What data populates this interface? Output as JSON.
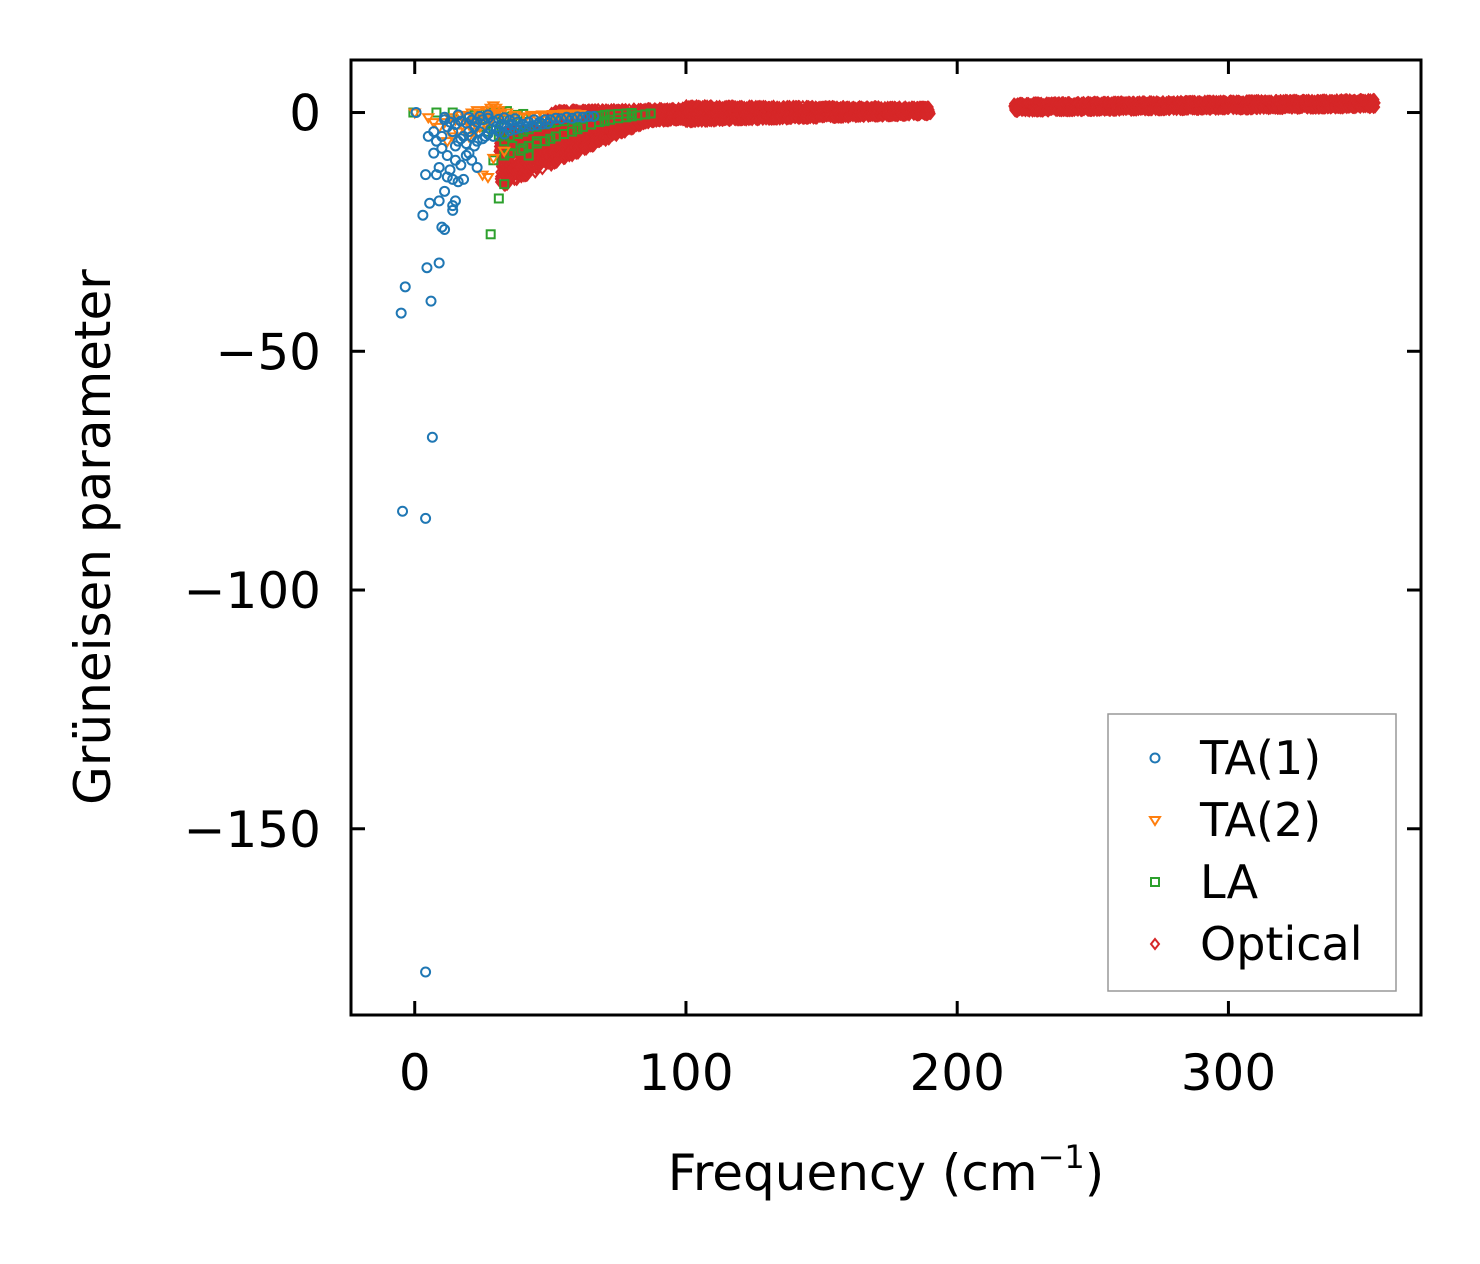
{
  "chart_data": {
    "type": "scatter",
    "xlabel": "Frequency (cm",
    "xlabel_sup": "−1",
    "xlabel_close": ")",
    "ylabel": "Grüneisen parameter",
    "xlim": [
      -23.5,
      371
    ],
    "ylim": [
      -189,
      11
    ],
    "xticks": [
      0,
      100,
      200,
      300
    ],
    "xtick_labels": [
      "0",
      "100",
      "200",
      "300"
    ],
    "yticks": [
      0,
      -50,
      -100,
      -150
    ],
    "ytick_labels": [
      "0",
      "−50",
      "−100",
      "−150"
    ],
    "legend_position": "lower-right",
    "colors": {
      "ta1": "#1f77b4",
      "ta2": "#ff7f0e",
      "la": "#2ca02c",
      "optical": "#d62728",
      "axes": "#000000",
      "legend_border": "#999999"
    },
    "series": [
      {
        "name": "TA(1)",
        "marker": "circle",
        "color_key": "ta1",
        "points": [
          [
            -5,
            -42
          ],
          [
            -3.5,
            -36.5
          ],
          [
            -4.5,
            -83.5
          ],
          [
            4,
            -85
          ],
          [
            6.5,
            -68
          ],
          [
            4,
            -180
          ],
          [
            6,
            -39.5
          ],
          [
            4.5,
            -32.5
          ],
          [
            9,
            -31.5
          ],
          [
            3,
            -21.5
          ],
          [
            5.5,
            -19
          ],
          [
            9,
            -18.5
          ],
          [
            14,
            -19.5
          ],
          [
            15,
            -18.5
          ],
          [
            10,
            -24
          ],
          [
            11,
            -24.5
          ],
          [
            4,
            -13
          ],
          [
            8,
            -13
          ],
          [
            9,
            -11.5
          ],
          [
            12,
            -13.5
          ],
          [
            14,
            -14
          ],
          [
            16,
            -14.5
          ],
          [
            18,
            -14
          ],
          [
            11,
            -16.5
          ],
          [
            14,
            -20.5
          ],
          [
            13,
            -12
          ],
          [
            7,
            -8.5
          ],
          [
            10,
            -7.5
          ],
          [
            12,
            -9
          ],
          [
            15,
            -10
          ],
          [
            17,
            -11
          ],
          [
            19,
            -9
          ],
          [
            21,
            -10
          ],
          [
            23,
            -11.5
          ],
          [
            20,
            -8.5
          ],
          [
            22,
            -7
          ],
          [
            5,
            -5
          ],
          [
            7,
            -4
          ],
          [
            8,
            -6
          ],
          [
            10,
            -5
          ],
          [
            12,
            -3
          ],
          [
            14,
            -4
          ],
          [
            16,
            -6
          ],
          [
            18,
            -5
          ],
          [
            20,
            -4
          ],
          [
            22,
            -3
          ],
          [
            24,
            -4
          ],
          [
            26,
            -5
          ],
          [
            28,
            -3.5
          ],
          [
            30,
            -3
          ],
          [
            32,
            -2.5
          ],
          [
            34,
            -3
          ],
          [
            36,
            -2.5
          ],
          [
            38,
            -2
          ],
          [
            40,
            -2.5
          ],
          [
            42,
            -2
          ],
          [
            44,
            -1.5
          ],
          [
            46,
            -2
          ],
          [
            48,
            -1.5
          ],
          [
            50,
            -1.5
          ],
          [
            52,
            -1.2
          ],
          [
            54,
            -1.3
          ],
          [
            56,
            -1
          ],
          [
            58,
            -1.2
          ],
          [
            60,
            -0.9
          ],
          [
            62,
            -1
          ],
          [
            64,
            -0.8
          ],
          [
            66,
            -0.8
          ],
          [
            11,
            -1.5
          ],
          [
            13,
            -2
          ],
          [
            15,
            -2.5
          ],
          [
            17,
            -1.8
          ],
          [
            19,
            -2.2
          ],
          [
            21,
            -1.6
          ],
          [
            23,
            -2
          ],
          [
            25,
            -1.5
          ],
          [
            27,
            -1.2
          ],
          [
            29,
            -1.8
          ],
          [
            31,
            -1.4
          ],
          [
            33,
            -1.1
          ],
          [
            35,
            -1.6
          ],
          [
            37,
            -1.3
          ],
          [
            15,
            -7
          ],
          [
            17,
            -5.5
          ],
          [
            19,
            -6.5
          ],
          [
            21,
            -5
          ],
          [
            23,
            -6
          ],
          [
            25,
            -5.5
          ],
          [
            27,
            -4.5
          ],
          [
            29,
            -5
          ],
          [
            31,
            -4
          ],
          [
            33,
            -4.5
          ],
          [
            35,
            -3.8
          ],
          [
            37,
            -3.5
          ],
          [
            39,
            -3.2
          ],
          [
            41,
            -3
          ],
          [
            43,
            -2.8
          ],
          [
            45,
            -2.6
          ],
          [
            47,
            -2.4
          ],
          [
            49,
            -2.3
          ],
          [
            0.5,
            0
          ],
          [
            11,
            -1
          ],
          [
            16,
            -0.5
          ],
          [
            20,
            -1
          ],
          [
            24,
            -0.8
          ],
          [
            27,
            -0.5
          ]
        ]
      },
      {
        "name": "TA(2)",
        "marker": "triangle-down",
        "color_key": "ta2",
        "points": [
          [
            0,
            0
          ],
          [
            5,
            -1
          ],
          [
            7,
            -2
          ],
          [
            9,
            -3
          ],
          [
            11,
            -2
          ],
          [
            13,
            -1
          ],
          [
            15,
            -1.5
          ],
          [
            17,
            -0.5
          ],
          [
            19,
            -1
          ],
          [
            21,
            0
          ],
          [
            23,
            0.5
          ],
          [
            25,
            0
          ],
          [
            27,
            0.5
          ],
          [
            28,
            1
          ],
          [
            29,
            1.5
          ],
          [
            30,
            1
          ],
          [
            31,
            0.5
          ],
          [
            32,
            0
          ],
          [
            25,
            -13
          ],
          [
            27,
            -13.5
          ],
          [
            29,
            -9.5
          ],
          [
            33,
            -8
          ],
          [
            35,
            -1
          ],
          [
            37,
            -0.5
          ],
          [
            39,
            -1
          ],
          [
            41,
            -0.8
          ],
          [
            43,
            -0.5
          ],
          [
            45,
            -0.7
          ],
          [
            47,
            -0.4
          ],
          [
            49,
            -0.6
          ],
          [
            51,
            -0.3
          ],
          [
            53,
            -0.5
          ],
          [
            55,
            -0.2
          ],
          [
            57,
            -0.4
          ],
          [
            59,
            -0.2
          ],
          [
            61,
            -0.3
          ],
          [
            12,
            -6
          ],
          [
            14,
            -5
          ],
          [
            16,
            -4
          ],
          [
            18,
            -3
          ],
          [
            20,
            -2.5
          ],
          [
            22,
            -2
          ],
          [
            24,
            -1.5
          ],
          [
            26,
            -1
          ],
          [
            28,
            -0.5
          ],
          [
            30,
            -0.2
          ],
          [
            32,
            -0.1
          ],
          [
            34,
            0
          ],
          [
            20,
            -5
          ],
          [
            22,
            -4
          ],
          [
            24,
            -3
          ],
          [
            26,
            -2.2
          ],
          [
            28,
            -1.6
          ]
        ]
      },
      {
        "name": "LA",
        "marker": "square",
        "color_key": "la",
        "points": [
          [
            -0.5,
            0
          ],
          [
            8,
            0
          ],
          [
            14,
            0
          ],
          [
            28,
            -25.5
          ],
          [
            31,
            -18
          ],
          [
            33,
            -15
          ],
          [
            29,
            -10
          ],
          [
            33,
            -9
          ],
          [
            35,
            -8.5
          ],
          [
            40,
            -7.5
          ],
          [
            42,
            -7
          ],
          [
            45,
            -6.5
          ],
          [
            48,
            -6
          ],
          [
            50,
            -5.5
          ],
          [
            52,
            -5
          ],
          [
            55,
            -4.5
          ],
          [
            58,
            -4
          ],
          [
            60,
            -3.5
          ],
          [
            62,
            -3
          ],
          [
            65,
            -2.5
          ],
          [
            68,
            -2
          ],
          [
            70,
            -1.8
          ],
          [
            72,
            -1.5
          ],
          [
            75,
            -1.2
          ],
          [
            78,
            -1
          ],
          [
            80,
            -0.8
          ],
          [
            82,
            -0.6
          ],
          [
            85,
            -0.4
          ],
          [
            87,
            -0.2
          ],
          [
            35,
            -5
          ],
          [
            38,
            -4.5
          ],
          [
            40,
            -4
          ],
          [
            42,
            -3.5
          ],
          [
            45,
            -3
          ],
          [
            48,
            -2.5
          ],
          [
            50,
            -2.2
          ],
          [
            52,
            -2
          ],
          [
            55,
            -1.8
          ],
          [
            58,
            -1.5
          ],
          [
            60,
            -1.3
          ],
          [
            62,
            -1.1
          ],
          [
            65,
            -0.9
          ],
          [
            68,
            -0.7
          ],
          [
            70,
            -0.5
          ],
          [
            72,
            -0.4
          ],
          [
            75,
            -0.3
          ],
          [
            78,
            -0.2
          ],
          [
            80,
            -0.1
          ],
          [
            30,
            -2
          ],
          [
            32,
            -1.5
          ],
          [
            34,
            -1
          ],
          [
            36,
            -0.8
          ],
          [
            38,
            -0.5
          ],
          [
            40,
            -0.3
          ],
          [
            25,
            -3
          ],
          [
            27,
            -4
          ],
          [
            29,
            -3.5
          ],
          [
            31,
            -5
          ],
          [
            33,
            -6
          ],
          [
            36,
            -7
          ],
          [
            39,
            -8
          ],
          [
            42,
            -9
          ],
          [
            45,
            -6
          ],
          [
            20,
            -1
          ],
          [
            22,
            -0.5
          ],
          [
            24,
            -0.3
          ],
          [
            26,
            -0.2
          ],
          [
            28,
            -0.1
          ],
          [
            30,
            0
          ],
          [
            32,
            0.2
          ],
          [
            34,
            0.3
          ]
        ]
      },
      {
        "name": "Optical",
        "marker": "diamond",
        "color_key": "optical",
        "bands": [
          {
            "x_start": 31,
            "x_end": 90,
            "y_start_low": -16,
            "y_start_high": -4,
            "y_end_low": -1,
            "y_end_high": 0.5
          },
          {
            "x_start": 50,
            "x_end": 100,
            "y_start_low": -4,
            "y_start_high": 0.5,
            "y_end_low": -1.5,
            "y_end_high": 1
          },
          {
            "x_start": 100,
            "x_end": 190,
            "y_start_low": -2,
            "y_start_high": 1.5,
            "y_end_low": -0.5,
            "y_end_high": 1.2
          },
          {
            "x_start": 221,
            "x_end": 354,
            "y_start_low": 0.2,
            "y_start_high": 2,
            "y_end_low": 1,
            "y_end_high": 2.8
          }
        ]
      }
    ]
  }
}
